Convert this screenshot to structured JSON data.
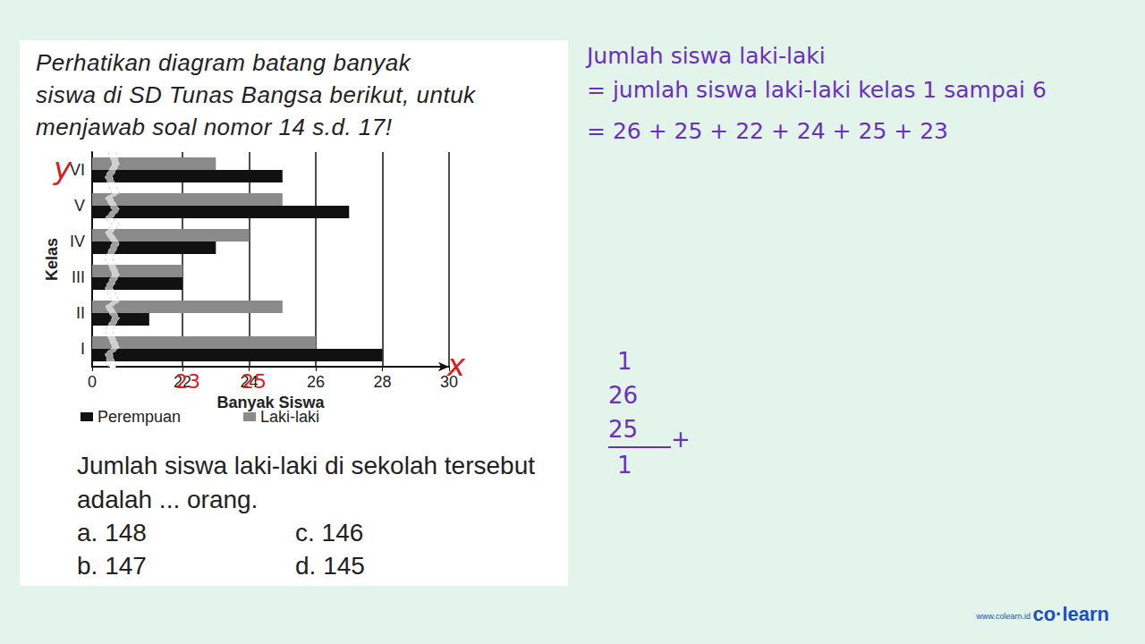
{
  "header": {
    "lines": [
      "Perhatikan diagram batang banyak",
      "siswa di SD Tunas Bangsa berikut, untuk",
      "menjawab soal nomor 14 s.d. 17!"
    ]
  },
  "chart_data": {
    "type": "bar",
    "orientation": "horizontal",
    "x_label": "Banyak Siswa",
    "y_label": "Kelas",
    "categories": [
      "I",
      "II",
      "III",
      "IV",
      "V",
      "VI"
    ],
    "series": [
      {
        "name": "Perempuan",
        "color": "#111111",
        "values": [
          28,
          21,
          22,
          23,
          27,
          25
        ]
      },
      {
        "name": "Laki-laki",
        "color": "#8a8a8a",
        "values": [
          26,
          25,
          22,
          24,
          25,
          23
        ]
      }
    ],
    "xlim": [
      0,
      30
    ],
    "xticks": [
      0,
      22,
      24,
      26,
      28,
      30
    ],
    "grid": true,
    "legend": "bottom"
  },
  "question": {
    "text": "Jumlah siswa laki-laki di sekolah tersebut adalah ... orang.",
    "options": [
      {
        "key": "a.",
        "text": "148"
      },
      {
        "key": "b.",
        "text": "147"
      },
      {
        "key": "c.",
        "text": "146"
      },
      {
        "key": "d.",
        "text": "145"
      }
    ]
  },
  "handwriting": {
    "lines": [
      "Jumlah siswa laki-laki",
      "= jumlah siswa laki-laki kelas 1 sampai 6",
      "= 26 + 25 + 22 + 24 + 25 + 23"
    ],
    "column": [
      "1",
      "26",
      "25",
      "+",
      "1"
    ],
    "chart_marks": [
      "y",
      "x",
      "23",
      "25"
    ]
  },
  "logo": {
    "brand": "co·learn",
    "url": "www.colearn.id"
  }
}
